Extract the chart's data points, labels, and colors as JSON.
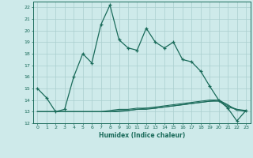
{
  "xlabel": "Humidex (Indice chaleur)",
  "background_color": "#ceeaea",
  "grid_color": "#aacece",
  "line_color": "#1a6b5a",
  "xlim": [
    -0.5,
    23.5
  ],
  "ylim": [
    12,
    22.5
  ],
  "yticks": [
    12,
    13,
    14,
    15,
    16,
    17,
    18,
    19,
    20,
    21,
    22
  ],
  "xticks": [
    0,
    1,
    2,
    3,
    4,
    5,
    6,
    7,
    8,
    9,
    10,
    11,
    12,
    13,
    14,
    15,
    16,
    17,
    18,
    19,
    20,
    21,
    22,
    23
  ],
  "main_line": [
    15.0,
    14.2,
    13.0,
    13.2,
    16.0,
    18.0,
    17.2,
    20.5,
    22.2,
    19.2,
    18.5,
    18.3,
    20.2,
    19.0,
    18.5,
    19.0,
    17.5,
    17.3,
    16.5,
    15.2,
    14.0,
    13.3,
    12.2,
    13.1
  ],
  "flat_line1": [
    13.0,
    13.0,
    13.0,
    13.0,
    13.0,
    13.0,
    13.0,
    13.0,
    13.1,
    13.2,
    13.2,
    13.3,
    13.3,
    13.4,
    13.5,
    13.6,
    13.7,
    13.8,
    13.9,
    14.0,
    14.0,
    13.6,
    13.1,
    13.1
  ],
  "flat_line2": [
    13.0,
    13.0,
    13.0,
    13.0,
    13.0,
    13.0,
    13.0,
    13.0,
    13.0,
    13.1,
    13.1,
    13.2,
    13.3,
    13.3,
    13.4,
    13.5,
    13.6,
    13.7,
    13.8,
    13.9,
    14.0,
    13.5,
    13.2,
    13.1
  ],
  "flat_line3": [
    13.0,
    13.0,
    13.0,
    13.0,
    13.0,
    13.0,
    13.0,
    13.0,
    13.0,
    13.0,
    13.1,
    13.2,
    13.2,
    13.3,
    13.4,
    13.5,
    13.6,
    13.7,
    13.8,
    13.9,
    13.9,
    13.4,
    13.2,
    13.0
  ]
}
